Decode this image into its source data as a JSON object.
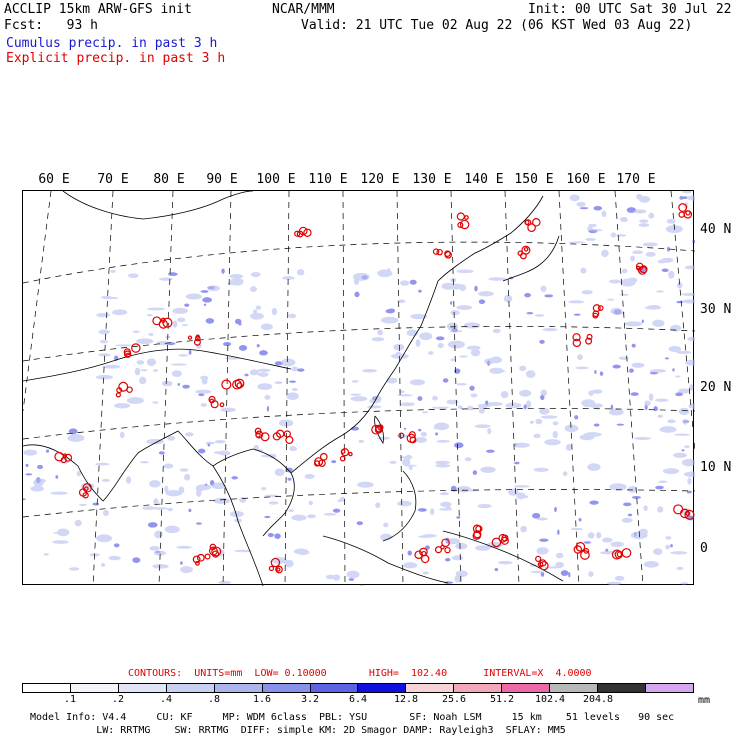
{
  "header": {
    "line1_left": "ACCLIP 15km ARW-GFS init",
    "line1_center": "NCAR/MMM",
    "line1_right": "Init: 00 UTC Sat 30 Jul 22",
    "line2_left": "Fcst:   93 h",
    "line2_right": "Valid: 21 UTC Tue 02 Aug 22 (06 KST Wed 03 Aug 22)",
    "cumulus_label": "Cumulus precip. in past 3 h",
    "explicit_label": "Explicit precip. in past 3 h"
  },
  "map": {
    "lon_labels": [
      "60 E",
      "70 E",
      "80 E",
      "90 E",
      "100 E",
      "110 E",
      "120 E",
      "130 E",
      "140 E",
      "150 E",
      "160 E",
      "170 E"
    ],
    "lat_labels": [
      "40 N",
      "30 N",
      "20 N",
      "10 N",
      "0"
    ]
  },
  "contours": {
    "text": "CONTOURS:  UNITS=mm  LOW= 0.10000       HIGH=  102.40      INTERVAL=X  4.0000"
  },
  "colorbar": {
    "colors": [
      "#ffffff",
      "#f4f4fb",
      "#e2e5f5",
      "#c9d1f0",
      "#aab6ec",
      "#8792ea",
      "#5e63e2",
      "#1010e0",
      "#f6d3d6",
      "#f2a8b8",
      "#ea6aa8",
      "#b8b8b8",
      "#333333",
      "#d7a6f0"
    ],
    "labels": [
      ".1",
      ".2",
      ".4",
      ".8",
      "1.6",
      "3.2",
      "6.4",
      "12.8",
      "25.6",
      "51.2",
      "102.4",
      "204.8"
    ],
    "units": "mm"
  },
  "footer": {
    "line1": "Model Info: V4.4     CU: KF     MP: WDM 6class  PBL: YSU       SF: Noah LSM     15 km    51 levels   90 sec",
    "line2": "           LW: RRTMG    SW: RRTMG  DIFF: simple KM: 2D Smagor DAMP: Rayleigh3  SFLAY: MM5"
  }
}
